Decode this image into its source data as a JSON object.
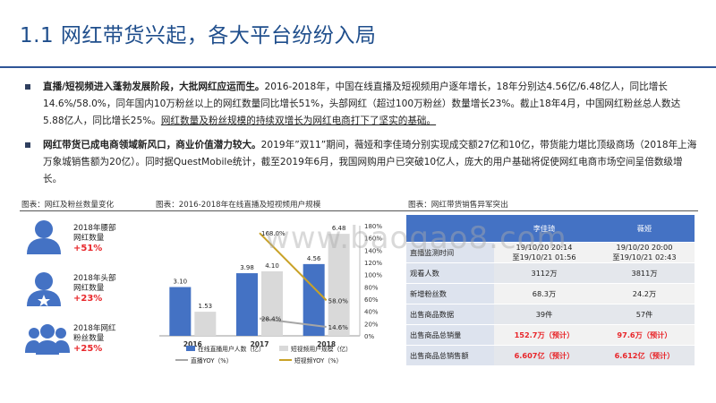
{
  "title": "1.1 网红带货兴起，各大平台纷纷入局",
  "bullets": [
    {
      "bold": "直播/短视频进入蓬勃发展阶段，大批网红应运而生。",
      "text": "2016-2018年，中国在线直播及短视频用户逐年增长，18年分别达4.56亿/6.48亿人，同比增长14.6%/58.0%，同年国内10万粉丝以上的网红数量同比增长51%，头部网红（超过100万粉丝）数量增长23%。截止18年4月，中国网红粉丝总人数达5.88亿人，同比增长25%。",
      "underline": "网红数量及粉丝规模的持续双增长为网红电商打下了坚实的基础。"
    },
    {
      "bold": "网红带货已成电商领域新风口，商业价值潜力较大。",
      "text": "2019年”双11”期间，薇娅和李佳琦分别实现成交额27亿和10亿，带货能力堪比顶级商场（2018年上海万象城销售额为20亿）。同时据QuestMobile统计，截至2019年6月，我国网购用户已突破10亿人，庞大的用户基础将促使网红电商市场空间呈倍数级增长。",
      "underline": ""
    }
  ],
  "figures": {
    "fig1": "图表：网红及粉丝数量变化",
    "fig2": "图表：2016-2018年在线直播及短视频用户规模",
    "fig3": "图表：网红带货销售异军突出"
  },
  "stats": [
    {
      "label1": "2018年腰部",
      "label2": "网红数量",
      "pct": "+51%",
      "icon": "person-icon"
    },
    {
      "label1": "2018年头部",
      "label2": "网红数量",
      "pct": "+23%",
      "icon": "person-star-icon"
    },
    {
      "label1": "2018年网红",
      "label2": "粉丝数量",
      "pct": "+25%",
      "icon": "people-group-icon"
    }
  ],
  "chart_data": {
    "type": "bar",
    "categories": [
      "2016",
      "2017",
      "2018"
    ],
    "series": [
      {
        "name": "在线直播用户人数（亿）",
        "type": "bar",
        "values": [
          3.1,
          3.98,
          4.56
        ],
        "color": "#4472c4",
        "axis": "left"
      },
      {
        "name": "短视频用户规模（亿）",
        "type": "bar",
        "values": [
          1.53,
          4.1,
          6.48
        ],
        "color": "#d9d9d9",
        "axis": "left"
      },
      {
        "name": "直播YOY（%）",
        "type": "line",
        "values": [
          null,
          28.4,
          14.6
        ],
        "labels": [
          "",
          "28.4%",
          "14.6%"
        ],
        "color": "#a6a6a6",
        "axis": "right"
      },
      {
        "name": "短视频YOY（%）",
        "type": "line",
        "values": [
          null,
          168.0,
          58.0
        ],
        "labels": [
          "",
          "168.0%",
          "58.0%"
        ],
        "color": "#c9a227",
        "axis": "right"
      }
    ],
    "bar_labels": [
      [
        "3.10",
        "3.98",
        "4.56"
      ],
      [
        "1.53",
        "4.10",
        "6.48"
      ]
    ],
    "ylim_right": [
      0,
      180
    ],
    "right_ticks": [
      "0%",
      "20%",
      "40%",
      "60%",
      "80%",
      "100%",
      "120%",
      "140%",
      "160%",
      "180%"
    ],
    "legend_position": "bottom"
  },
  "table": {
    "headers": [
      "",
      "李佳琦",
      "薇娅"
    ],
    "rows": [
      {
        "label": "直播监测时间",
        "v1": "19/10/20 20:14\n至19/10/21 01:56",
        "v2": "19/10/20 20:00\n至19/10/21 02:43",
        "red": false
      },
      {
        "label": "观看人数",
        "v1": "3112万",
        "v2": "3811万",
        "red": false
      },
      {
        "label": "新增粉丝数",
        "v1": "68.3万",
        "v2": "24.2万",
        "red": false
      },
      {
        "label": "出售商品数据",
        "v1": "39件",
        "v2": "57件",
        "red": false
      },
      {
        "label": "出售商品总销量",
        "v1": "152.7万（预计）",
        "v2": "97.6万（预计）",
        "red": true
      },
      {
        "label": "出售商品总销售额",
        "v1": "6.607亿（预计）",
        "v2": "6.612亿（预计）",
        "red": true
      }
    ]
  },
  "watermark": "www.baogao8.com"
}
